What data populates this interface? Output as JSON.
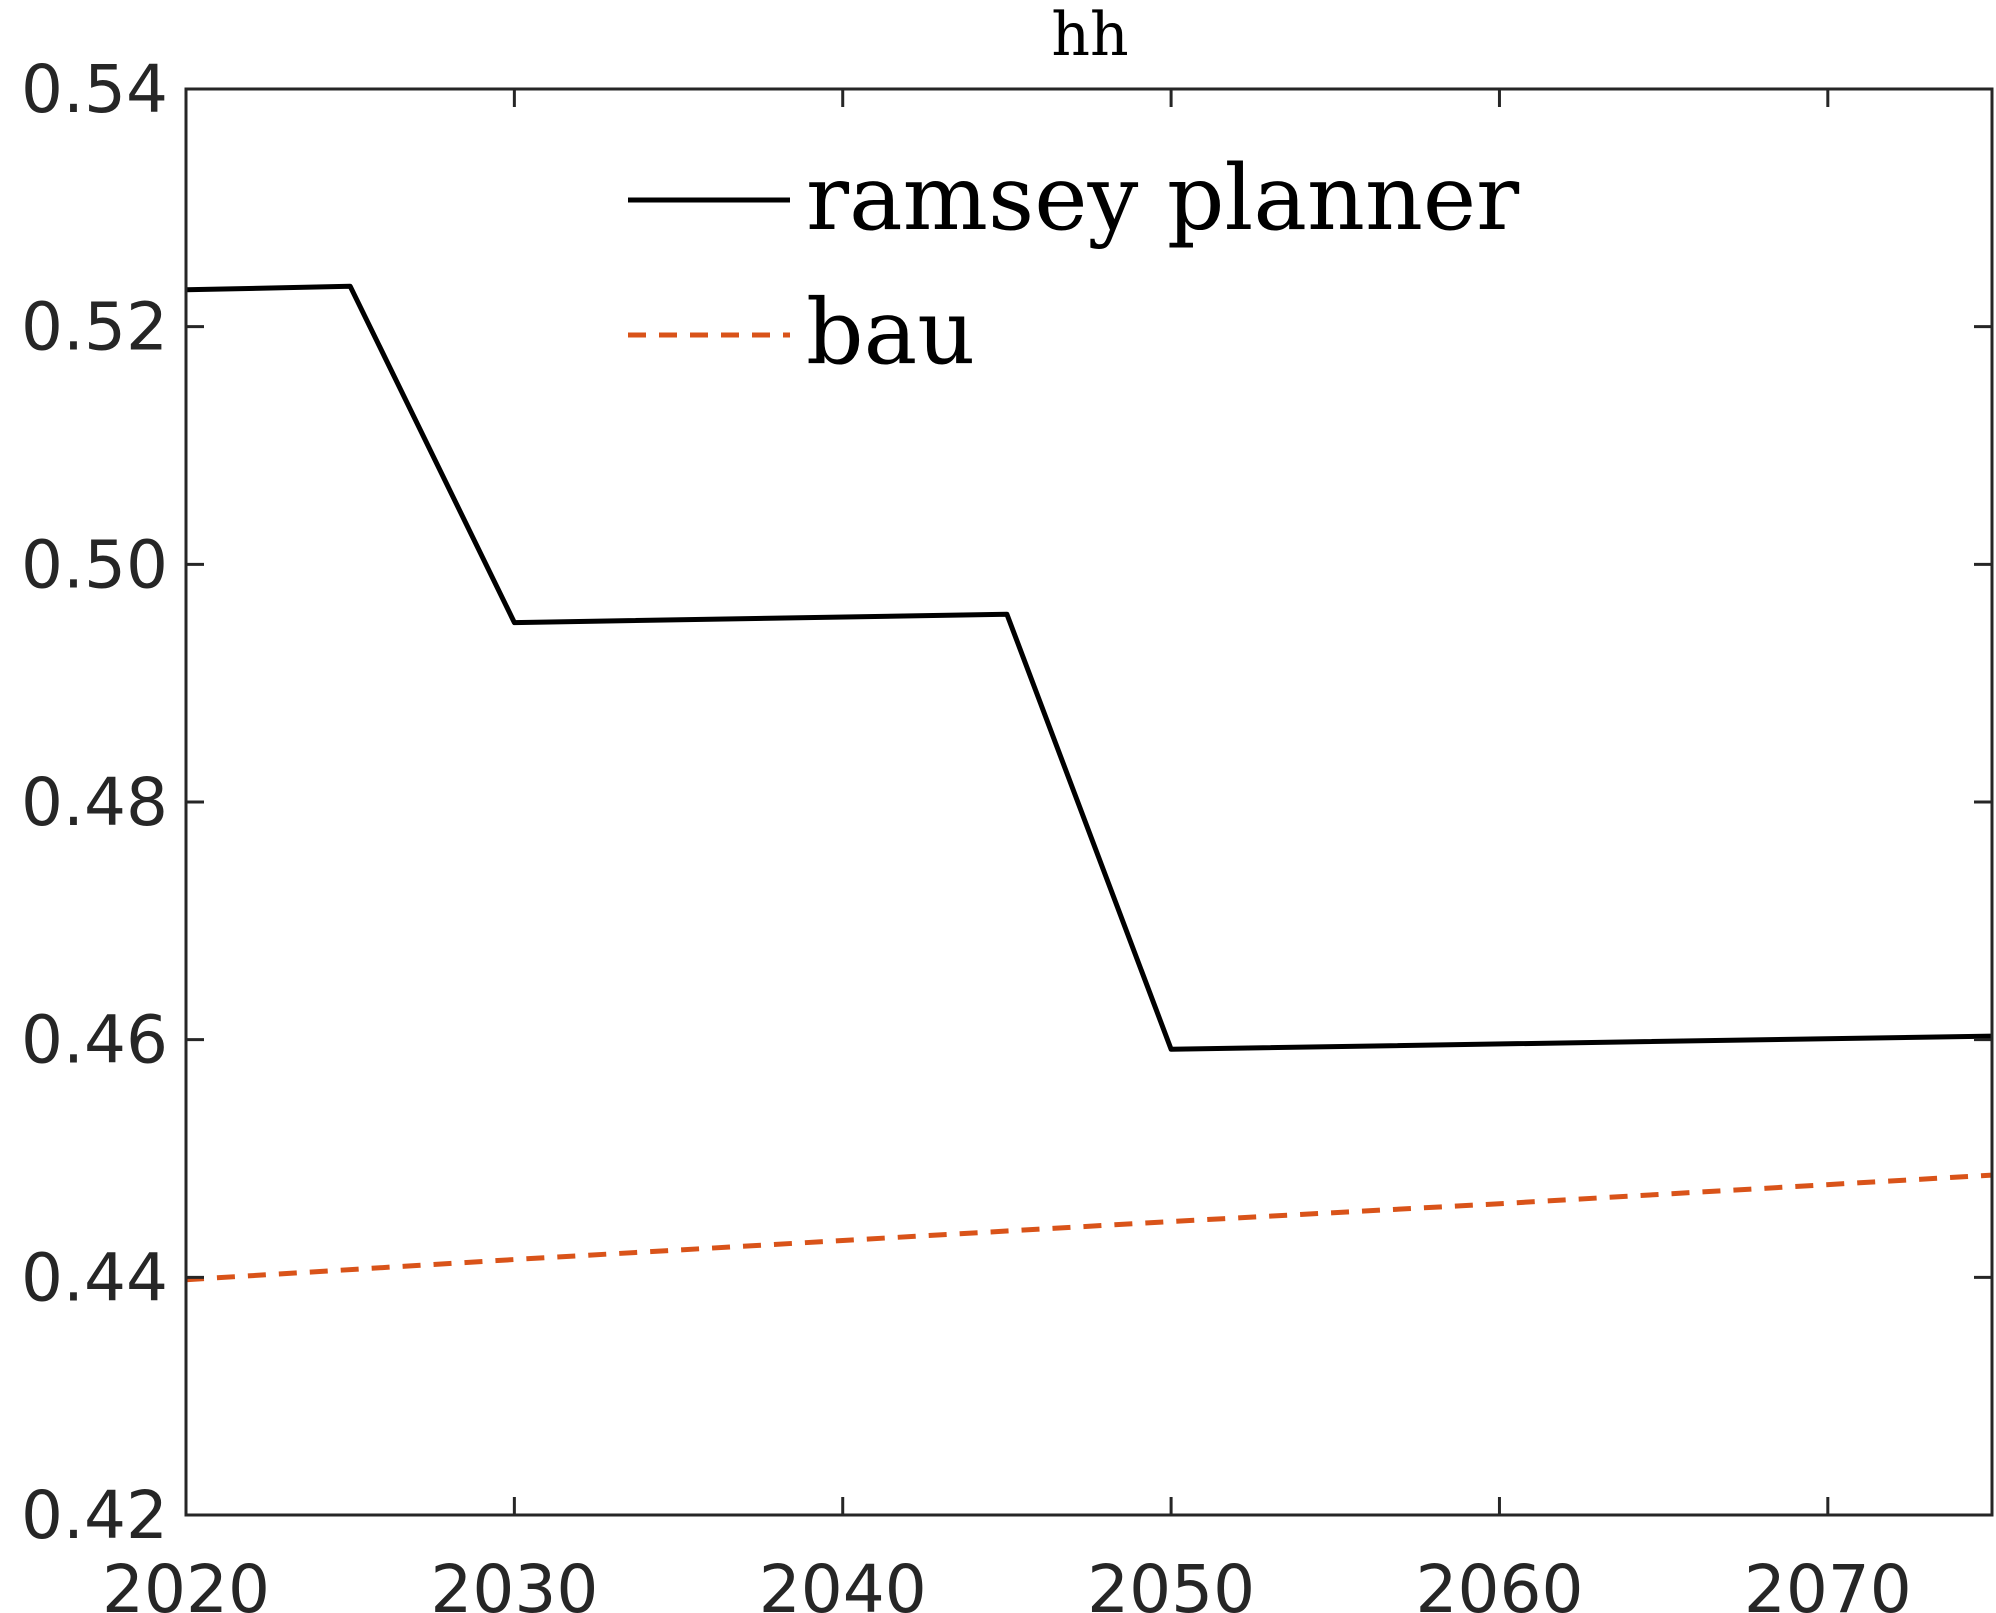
{
  "chart_data": {
    "type": "line",
    "title": "hh",
    "xlabel": "",
    "ylabel": "",
    "xlim": [
      2020,
      2075
    ],
    "ylim": [
      0.42,
      0.54
    ],
    "xticks": [
      "2020",
      "2030",
      "2040",
      "2050",
      "2060",
      "2070"
    ],
    "yticks": [
      "0.42",
      "0.44",
      "0.46",
      "0.48",
      "0.50",
      "0.52",
      "0.54"
    ],
    "grid": false,
    "legend_position": "top-center",
    "series": [
      {
        "name": "ramsey planner",
        "color": "#000000",
        "style": "solid",
        "x": [
          2020,
          2025,
          2030,
          2045,
          2050,
          2075
        ],
        "y": [
          0.5231,
          0.5234,
          0.4951,
          0.4958,
          0.4592,
          0.4603
        ]
      },
      {
        "name": "bau",
        "color": "#D95319",
        "style": "dashed",
        "x": [
          2020,
          2030,
          2040,
          2050,
          2060,
          2075
        ],
        "y": [
          0.4398,
          0.4415,
          0.4431,
          0.4447,
          0.4462,
          0.4486
        ]
      }
    ]
  }
}
